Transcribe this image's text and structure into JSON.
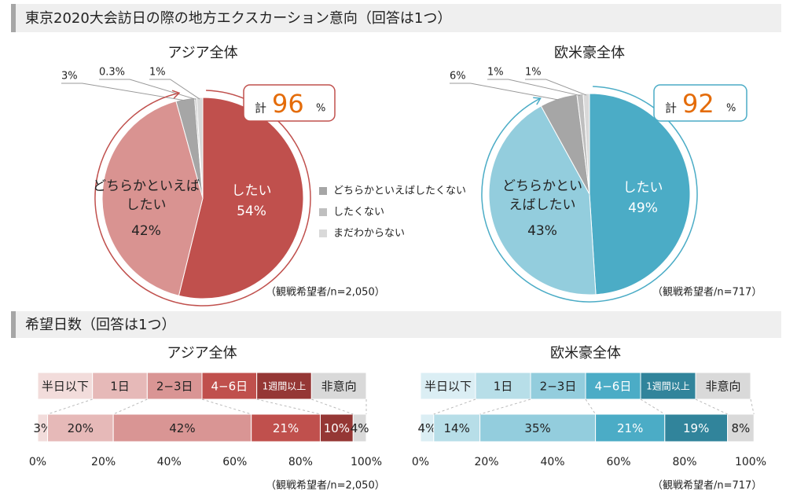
{
  "sections": [
    {
      "title": "東京2020大会訪日の際の地方エクスカーション意向（回答は1つ）"
    },
    {
      "title": "希望日数（回答は1つ）"
    }
  ],
  "chart_data": [
    {
      "type": "pie",
      "title": "アジア全体",
      "categories": [
        "したい",
        "どちらかといえばしたい",
        "どちらかといえばしたくない",
        "したくない",
        "まだわからない"
      ],
      "values": [
        54,
        42,
        3,
        0.3,
        1
      ],
      "value_labels": [
        "54%",
        "42%",
        "3%",
        "0.3%",
        "1%"
      ],
      "colors": [
        "#c0504d",
        "#d99391",
        "#a6a6a6",
        "#bfbfbf",
        "#d9d9d9"
      ],
      "legend": true,
      "annotation": {
        "label": "計",
        "value": 96,
        "unit": "%"
      },
      "note": "（観戦希望者/n=2,050）"
    },
    {
      "type": "pie",
      "title": "欧米豪全体",
      "categories": [
        "したい",
        "どちらかといえばしたい",
        "どちらかといえばしたくない",
        "したくない",
        "まだわからない"
      ],
      "values": [
        49,
        43,
        6,
        1,
        1
      ],
      "value_labels": [
        "49%",
        "43%",
        "6%",
        "1%",
        "1%"
      ],
      "colors": [
        "#4bacc6",
        "#93cddd",
        "#a6a6a6",
        "#bfbfbf",
        "#d9d9d9"
      ],
      "legend": false,
      "annotation": {
        "label": "計",
        "value": 92,
        "unit": "%"
      },
      "note": "（観戦希望者/n=717）"
    },
    {
      "type": "stacked_bar",
      "title": "アジア全体",
      "categories": [
        "半日以下",
        "1日",
        "2−3日",
        "4−6日",
        "1週間以上",
        "非意向"
      ],
      "values": [
        3,
        20,
        42,
        21,
        10,
        4
      ],
      "value_labels": [
        "3%",
        "20%",
        "42%",
        "21%",
        "10%",
        "4%"
      ],
      "colors": [
        "#f2dcdb",
        "#e6b9b8",
        "#d99594",
        "#c0504d",
        "#953735",
        "#d9d9d9"
      ],
      "xlim": [
        0,
        100
      ],
      "xticks": [
        {
          "value": 0,
          "label": "0%"
        },
        {
          "value": 20,
          "label": "20%"
        },
        {
          "value": 40,
          "label": "40%"
        },
        {
          "value": 60,
          "label": "60%"
        },
        {
          "value": 80,
          "label": "80%"
        },
        {
          "value": 100,
          "label": "100%"
        }
      ],
      "note": "（観戦希望者/n=2,050）"
    },
    {
      "type": "stacked_bar",
      "title": "欧米豪全体",
      "categories": [
        "半日以下",
        "1日",
        "2−3日",
        "4−6日",
        "1週間以上",
        "非意向"
      ],
      "values": [
        4,
        14,
        35,
        21,
        19,
        8
      ],
      "value_labels": [
        "4%",
        "14%",
        "35%",
        "21%",
        "19%",
        "8%"
      ],
      "colors": [
        "#dbeef4",
        "#b7dee8",
        "#93cddd",
        "#4bacc6",
        "#31849b",
        "#d9d9d9"
      ],
      "xlim": [
        0,
        100
      ],
      "xticks": [
        {
          "value": 0,
          "label": "0%"
        },
        {
          "value": 20,
          "label": "20%"
        },
        {
          "value": 40,
          "label": "40%"
        },
        {
          "value": 60,
          "label": "60%"
        },
        {
          "value": 80,
          "label": "80%"
        },
        {
          "value": 100,
          "label": "100%"
        }
      ],
      "note": "（観戦希望者/n=717）"
    }
  ]
}
